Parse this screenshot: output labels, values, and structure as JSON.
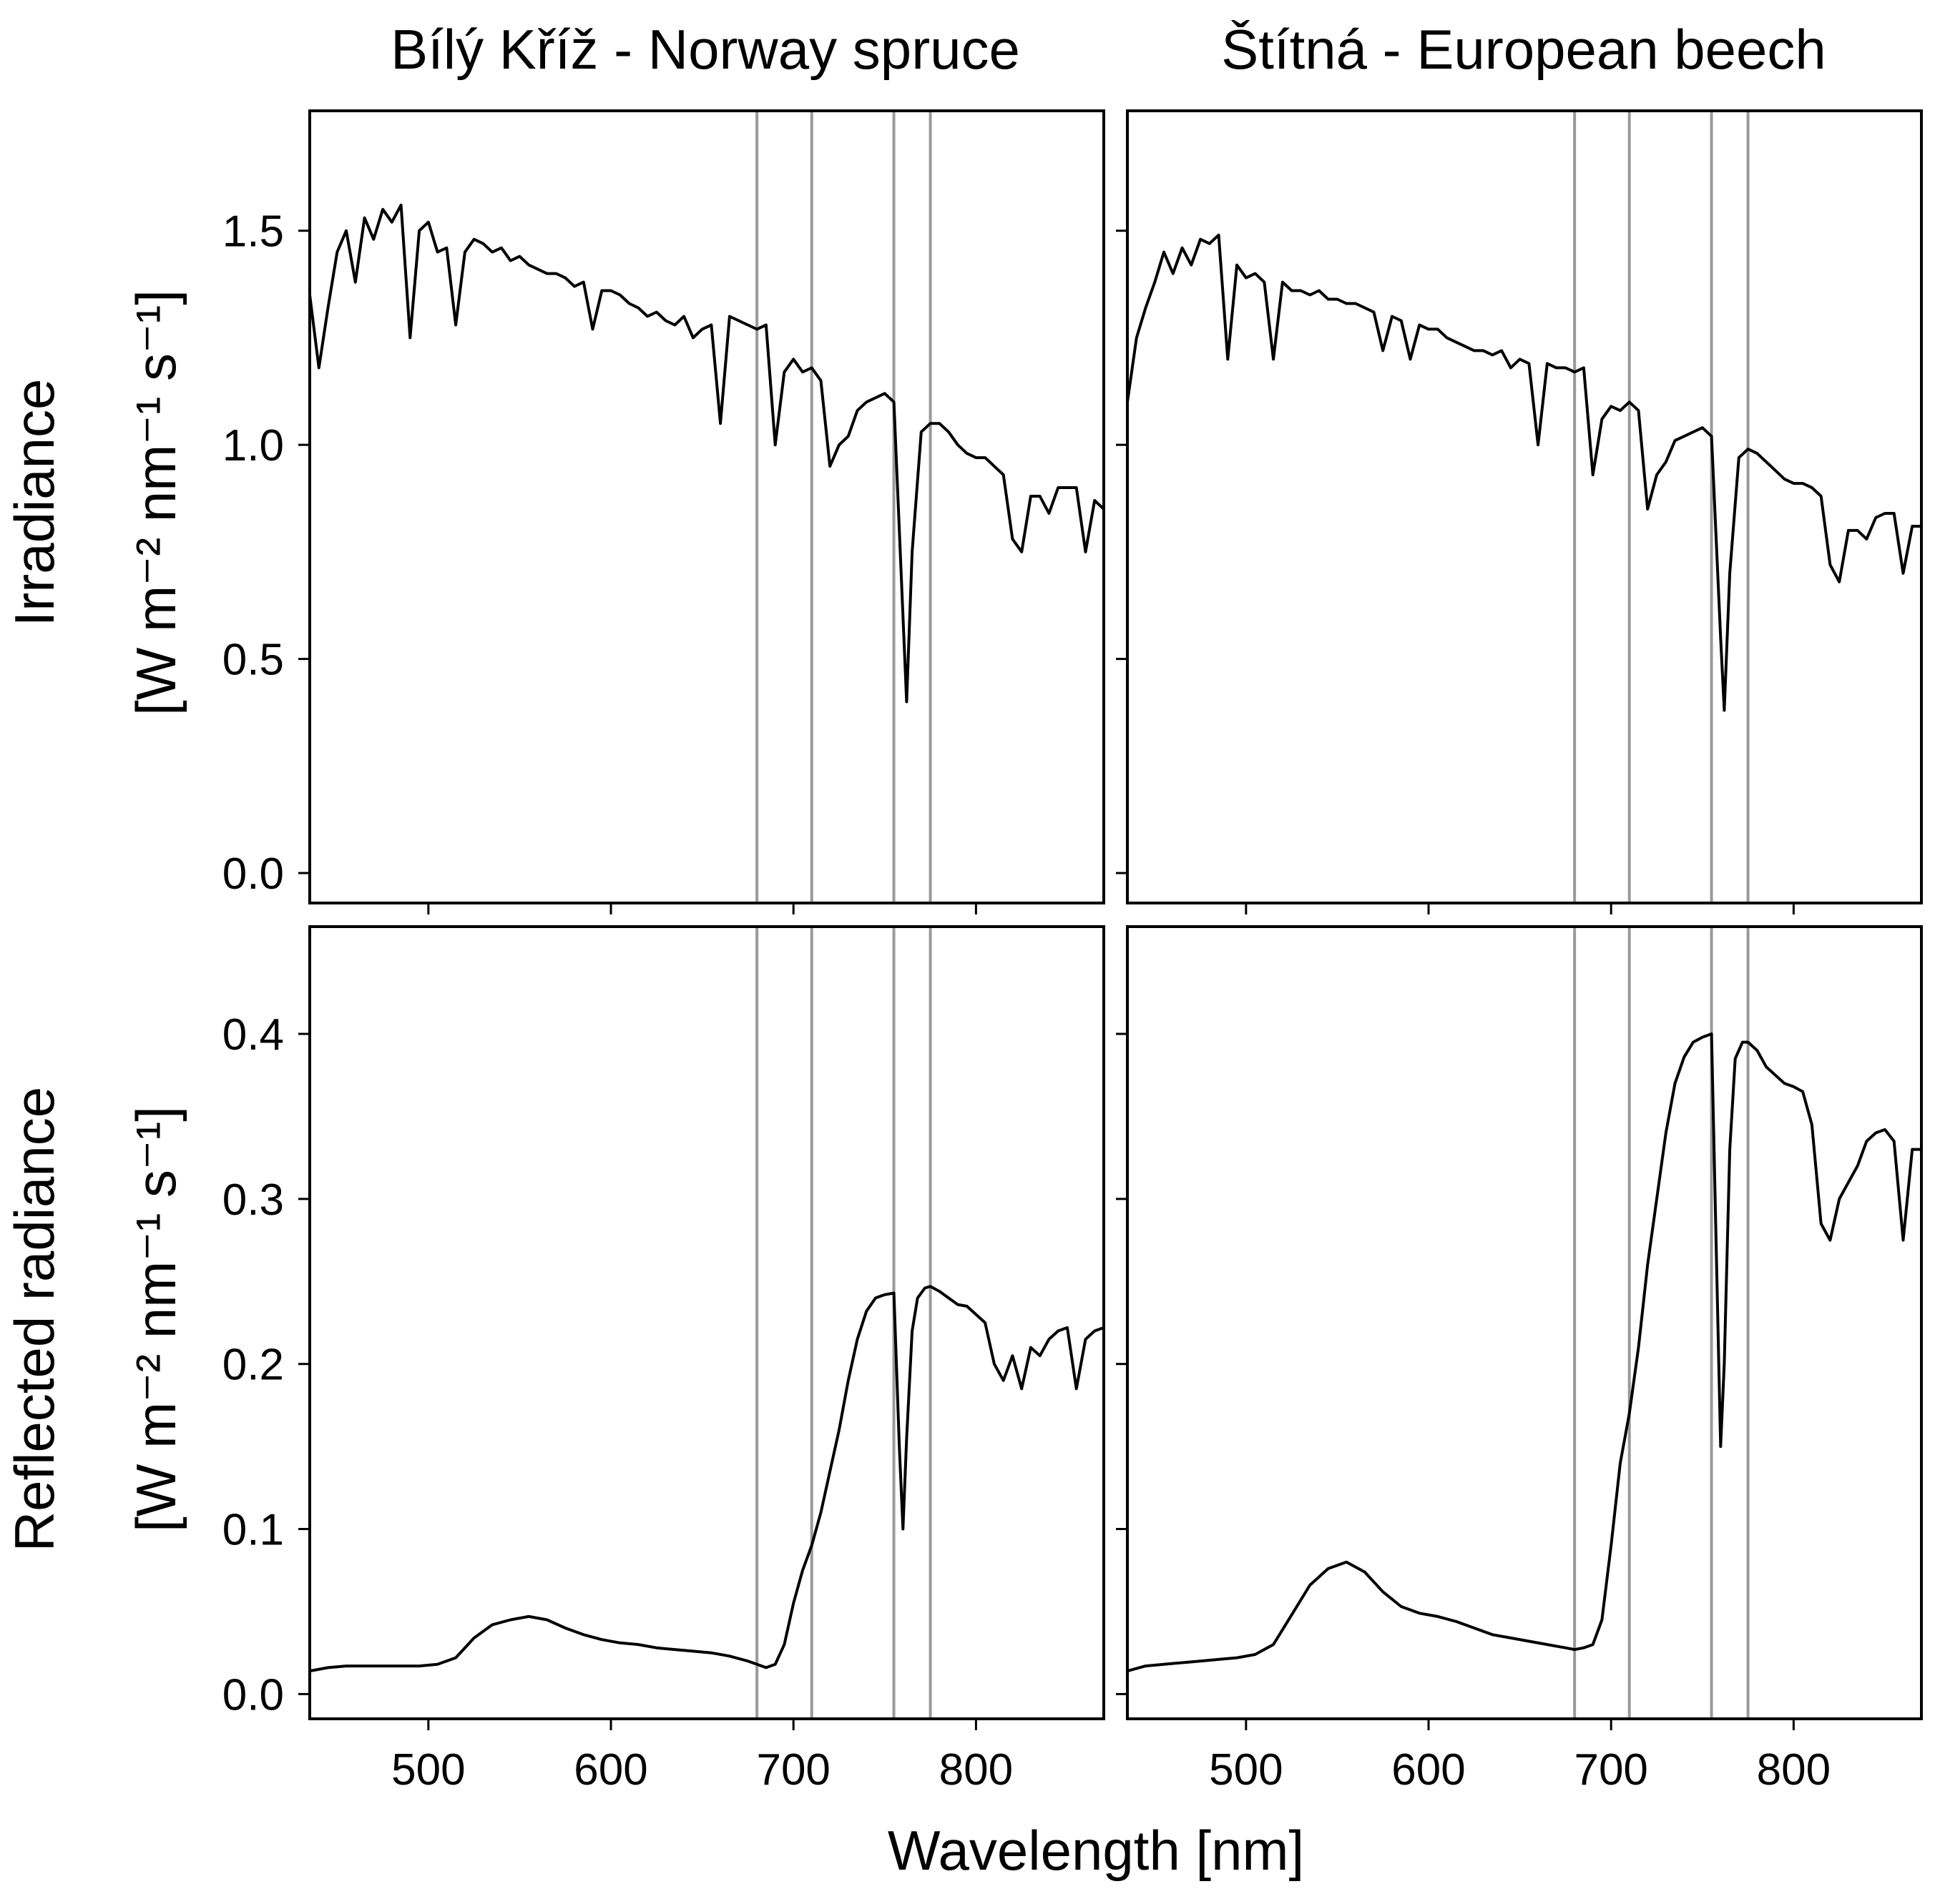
{
  "colors": {
    "line": "#000000",
    "band": "#999999",
    "background": "#ffffff"
  },
  "chart_data": {
    "type": "line",
    "layout": "2x2 grid",
    "x_label": "Wavelength [nm]",
    "xlim": [
      435,
      870
    ],
    "x_ticks": [
      500,
      600,
      700,
      800
    ],
    "x_tick_labels": [
      "500",
      "600",
      "700",
      "800"
    ],
    "band_lines_nm": [
      680,
      710,
      755,
      775
    ],
    "column_titles": [
      "Bílý Kříž - Norway spruce",
      "Štítná - European beech"
    ],
    "rows": [
      {
        "y_label_line1": "Irradiance",
        "y_label_line2": "[W m⁻² nm⁻¹ s⁻¹]",
        "ylim": [
          -0.07,
          1.78
        ],
        "y_ticks": [
          0.0,
          0.5,
          1.0,
          1.5
        ],
        "y_tick_labels": [
          "0.0",
          "0.5",
          "1.0",
          "1.5"
        ]
      },
      {
        "y_label_line1": "Reflected radiance",
        "y_label_line2": "[W m⁻² nm⁻¹ s⁻¹]",
        "ylim": [
          -0.015,
          0.465
        ],
        "y_ticks": [
          0.0,
          0.1,
          0.2,
          0.3,
          0.4
        ],
        "y_tick_labels": [
          "0.0",
          "0.1",
          "0.2",
          "0.3",
          "0.4"
        ]
      }
    ],
    "panels": [
      {
        "row": 0,
        "col": 0,
        "name": "Irradiance - Bílý Kříž - Norway spruce",
        "x": [
          435,
          440,
          445,
          450,
          455,
          460,
          465,
          470,
          475,
          480,
          485,
          490,
          495,
          500,
          505,
          510,
          515,
          520,
          525,
          530,
          535,
          540,
          545,
          550,
          555,
          560,
          565,
          570,
          575,
          580,
          585,
          590,
          595,
          600,
          605,
          610,
          615,
          620,
          625,
          630,
          635,
          640,
          645,
          650,
          655,
          660,
          665,
          670,
          675,
          680,
          685,
          690,
          695,
          700,
          705,
          710,
          715,
          720,
          725,
          730,
          735,
          740,
          745,
          750,
          755,
          760,
          762,
          765,
          770,
          775,
          780,
          785,
          790,
          795,
          800,
          805,
          810,
          815,
          820,
          825,
          830,
          835,
          840,
          845,
          850,
          855,
          860,
          865,
          870
        ],
        "y": [
          1.35,
          1.18,
          1.32,
          1.45,
          1.5,
          1.38,
          1.53,
          1.48,
          1.55,
          1.52,
          1.56,
          1.25,
          1.5,
          1.52,
          1.45,
          1.46,
          1.28,
          1.45,
          1.48,
          1.47,
          1.45,
          1.46,
          1.43,
          1.44,
          1.42,
          1.41,
          1.4,
          1.4,
          1.39,
          1.37,
          1.38,
          1.27,
          1.36,
          1.36,
          1.35,
          1.33,
          1.32,
          1.3,
          1.31,
          1.29,
          1.28,
          1.3,
          1.25,
          1.27,
          1.28,
          1.05,
          1.3,
          1.29,
          1.28,
          1.27,
          1.28,
          1.0,
          1.17,
          1.2,
          1.17,
          1.18,
          1.15,
          0.95,
          1.0,
          1.02,
          1.08,
          1.1,
          1.11,
          1.12,
          1.1,
          0.6,
          0.4,
          0.75,
          1.03,
          1.05,
          1.05,
          1.03,
          1.0,
          0.98,
          0.97,
          0.97,
          0.95,
          0.93,
          0.78,
          0.75,
          0.88,
          0.88,
          0.84,
          0.9,
          0.9,
          0.9,
          0.75,
          0.87,
          0.85
        ]
      },
      {
        "row": 0,
        "col": 1,
        "name": "Irradiance - Štítná - European beech",
        "x": [
          435,
          440,
          445,
          450,
          455,
          460,
          465,
          470,
          475,
          480,
          485,
          490,
          495,
          500,
          505,
          510,
          515,
          520,
          525,
          530,
          535,
          540,
          545,
          550,
          555,
          560,
          565,
          570,
          575,
          580,
          585,
          590,
          595,
          600,
          605,
          610,
          615,
          620,
          625,
          630,
          635,
          640,
          645,
          650,
          655,
          660,
          665,
          670,
          675,
          680,
          685,
          690,
          695,
          700,
          705,
          710,
          715,
          720,
          725,
          730,
          735,
          740,
          745,
          750,
          755,
          760,
          762,
          765,
          770,
          775,
          780,
          785,
          790,
          795,
          800,
          805,
          810,
          815,
          820,
          825,
          830,
          835,
          840,
          845,
          850,
          855,
          860,
          865,
          870
        ],
        "y": [
          1.1,
          1.25,
          1.32,
          1.38,
          1.45,
          1.4,
          1.46,
          1.42,
          1.48,
          1.47,
          1.49,
          1.2,
          1.42,
          1.39,
          1.4,
          1.38,
          1.2,
          1.38,
          1.36,
          1.36,
          1.35,
          1.36,
          1.34,
          1.34,
          1.33,
          1.33,
          1.32,
          1.31,
          1.22,
          1.3,
          1.29,
          1.2,
          1.28,
          1.27,
          1.27,
          1.25,
          1.24,
          1.23,
          1.22,
          1.22,
          1.21,
          1.22,
          1.18,
          1.2,
          1.19,
          1.0,
          1.19,
          1.18,
          1.18,
          1.17,
          1.18,
          0.93,
          1.06,
          1.09,
          1.08,
          1.1,
          1.08,
          0.85,
          0.93,
          0.96,
          1.01,
          1.02,
          1.03,
          1.04,
          1.02,
          0.55,
          0.38,
          0.7,
          0.97,
          0.99,
          0.98,
          0.96,
          0.94,
          0.92,
          0.91,
          0.91,
          0.9,
          0.88,
          0.72,
          0.68,
          0.8,
          0.8,
          0.78,
          0.83,
          0.84,
          0.84,
          0.7,
          0.81,
          0.81
        ]
      },
      {
        "row": 1,
        "col": 0,
        "name": "Reflected radiance - Bílý Kříž - Norway spruce",
        "x": [
          435,
          445,
          455,
          465,
          475,
          485,
          495,
          505,
          515,
          525,
          535,
          545,
          555,
          565,
          575,
          585,
          595,
          605,
          615,
          625,
          635,
          645,
          655,
          665,
          675,
          680,
          685,
          690,
          695,
          700,
          705,
          710,
          715,
          720,
          725,
          730,
          735,
          740,
          745,
          750,
          755,
          758,
          760,
          762,
          765,
          768,
          772,
          775,
          780,
          785,
          790,
          795,
          800,
          805,
          810,
          815,
          820,
          825,
          830,
          835,
          840,
          845,
          850,
          855,
          860,
          865,
          870
        ],
        "y": [
          0.014,
          0.016,
          0.017,
          0.017,
          0.017,
          0.017,
          0.017,
          0.018,
          0.022,
          0.034,
          0.042,
          0.045,
          0.047,
          0.045,
          0.04,
          0.036,
          0.033,
          0.031,
          0.03,
          0.028,
          0.027,
          0.026,
          0.025,
          0.023,
          0.02,
          0.018,
          0.016,
          0.018,
          0.03,
          0.055,
          0.075,
          0.09,
          0.11,
          0.135,
          0.16,
          0.19,
          0.215,
          0.232,
          0.24,
          0.242,
          0.243,
          0.15,
          0.1,
          0.155,
          0.22,
          0.24,
          0.246,
          0.247,
          0.244,
          0.24,
          0.236,
          0.235,
          0.23,
          0.225,
          0.2,
          0.19,
          0.205,
          0.185,
          0.21,
          0.205,
          0.215,
          0.22,
          0.222,
          0.185,
          0.215,
          0.22,
          0.222
        ]
      },
      {
        "row": 1,
        "col": 1,
        "name": "Reflected radiance - Štítná - European beech",
        "x": [
          435,
          445,
          455,
          465,
          475,
          485,
          495,
          505,
          515,
          525,
          535,
          545,
          555,
          565,
          575,
          585,
          595,
          605,
          615,
          625,
          635,
          645,
          655,
          665,
          675,
          680,
          685,
          690,
          695,
          700,
          705,
          710,
          715,
          720,
          725,
          730,
          735,
          740,
          745,
          750,
          755,
          758,
          760,
          762,
          765,
          768,
          772,
          775,
          780,
          785,
          790,
          795,
          800,
          805,
          810,
          815,
          820,
          825,
          830,
          835,
          840,
          845,
          850,
          855,
          860,
          865,
          870
        ],
        "y": [
          0.014,
          0.017,
          0.018,
          0.019,
          0.02,
          0.021,
          0.022,
          0.024,
          0.03,
          0.048,
          0.066,
          0.076,
          0.08,
          0.074,
          0.062,
          0.053,
          0.049,
          0.047,
          0.044,
          0.04,
          0.036,
          0.034,
          0.032,
          0.03,
          0.028,
          0.027,
          0.028,
          0.03,
          0.045,
          0.09,
          0.14,
          0.17,
          0.21,
          0.26,
          0.3,
          0.34,
          0.37,
          0.386,
          0.395,
          0.398,
          0.4,
          0.25,
          0.15,
          0.2,
          0.33,
          0.385,
          0.395,
          0.395,
          0.39,
          0.38,
          0.375,
          0.37,
          0.368,
          0.365,
          0.345,
          0.285,
          0.275,
          0.3,
          0.31,
          0.32,
          0.335,
          0.34,
          0.342,
          0.335,
          0.275,
          0.33,
          0.33
        ]
      }
    ]
  }
}
